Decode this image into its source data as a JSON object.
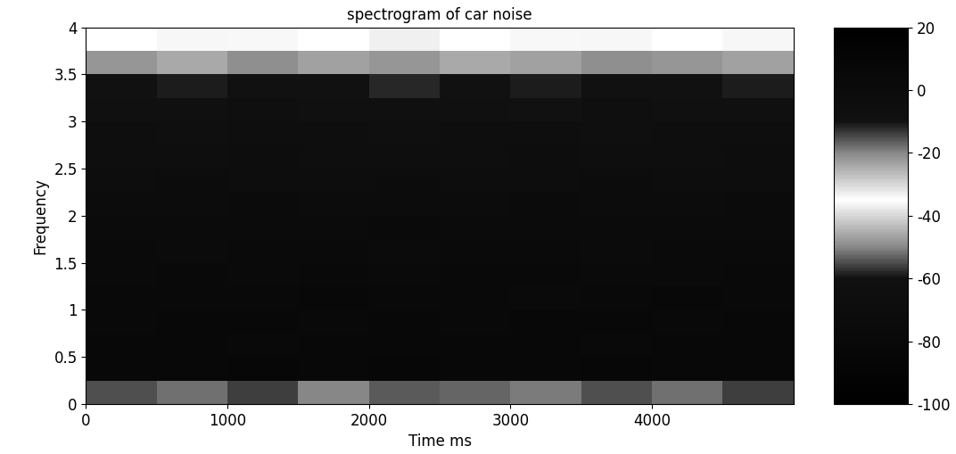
{
  "chart_data": {
    "type": "heatmap",
    "title": "spectrogram of car noise",
    "x_label": "Time ms",
    "y_label": "Frequency",
    "time_edges": [
      0,
      500,
      1000,
      1500,
      2000,
      2500,
      3000,
      3500,
      4000,
      4500,
      5000
    ],
    "frequency_edges": [
      0,
      0.25,
      0.5,
      0.75,
      1,
      1.25,
      1.5,
      1.75,
      2,
      2.25,
      2.5,
      2.75,
      3,
      3.25,
      3.5,
      3.75,
      4
    ],
    "cells": [
      [
        -55,
        -52,
        -56,
        -50,
        -54,
        -53,
        -51,
        -55,
        -52,
        -56
      ],
      [
        -82,
        -80,
        -83,
        -81,
        -84,
        -80,
        -82,
        -83,
        -81,
        -82
      ],
      [
        -80,
        -81,
        -79,
        -82,
        -80,
        -81,
        -80,
        -79,
        -82,
        -80
      ],
      [
        -79,
        -80,
        -81,
        -78,
        -80,
        -79,
        -81,
        -80,
        -79,
        -80
      ],
      [
        -78,
        -79,
        -78,
        -80,
        -79,
        -78,
        -77,
        -79,
        -80,
        -78
      ],
      [
        -77,
        -78,
        -76,
        -78,
        -77,
        -79,
        -78,
        -76,
        -77,
        -78
      ],
      [
        -76,
        -75,
        -77,
        -76,
        -75,
        -77,
        -76,
        -75,
        -76,
        -77
      ],
      [
        -74,
        -75,
        -73,
        -74,
        -76,
        -74,
        -73,
        -75,
        -74,
        -74
      ],
      [
        -72,
        -71,
        -73,
        -72,
        -71,
        -72,
        -73,
        -71,
        -72,
        -73
      ],
      [
        -70,
        -71,
        -69,
        -70,
        -71,
        -70,
        -69,
        -71,
        -70,
        -70
      ],
      [
        -68,
        -67,
        -69,
        -68,
        -67,
        -68,
        -69,
        -67,
        -68,
        -69
      ],
      [
        -66,
        -65,
        -67,
        -66,
        -65,
        -66,
        -67,
        -65,
        -66,
        -66
      ],
      [
        -63,
        -62,
        -64,
        -63,
        -62,
        -63,
        -61,
        -64,
        -62,
        -63
      ],
      [
        -60,
        -59,
        -61,
        -60,
        -58,
        -60,
        -59,
        -61,
        -60,
        -59
      ],
      [
        -48,
        -46,
        -49,
        -47,
        -48,
        -46,
        -47,
        -49,
        -48,
        -47
      ],
      [
        -35,
        -36,
        -34,
        -35,
        -37,
        -35,
        -34,
        -36,
        -35,
        -36
      ]
    ],
    "xlim": [
      0,
      5000
    ],
    "xticks": [
      0,
      1000,
      2000,
      3000,
      4000
    ],
    "ylim": [
      0,
      4
    ],
    "yticks": [
      0,
      0.5,
      1,
      1.5,
      2,
      2.5,
      3,
      3.5,
      4
    ],
    "colorbar": {
      "range": [
        -100,
        20
      ],
      "ticks": [
        20,
        0,
        -20,
        -40,
        -60,
        -80,
        -100
      ]
    }
  }
}
